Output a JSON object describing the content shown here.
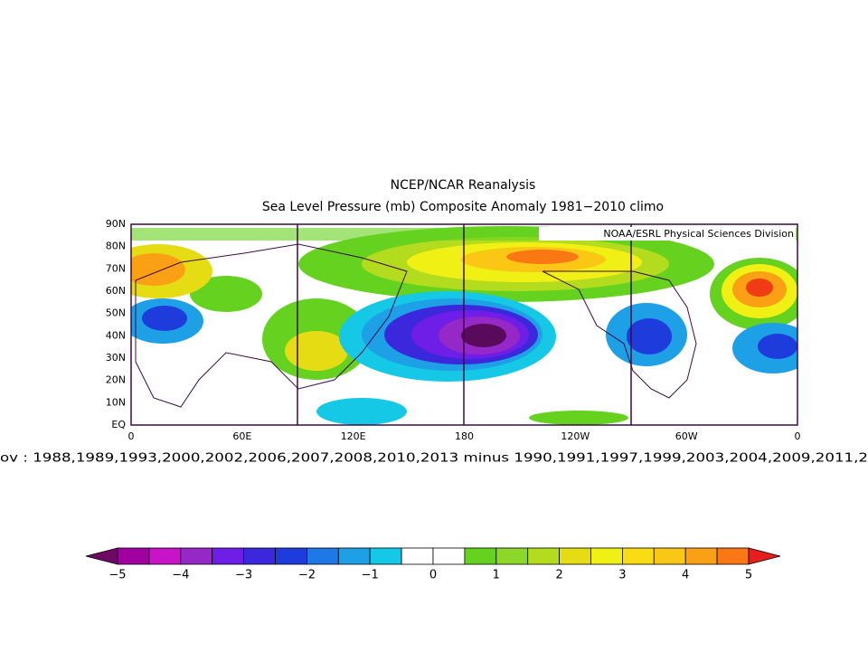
{
  "header": {
    "title": "NCEP/NCAR Reanalysis",
    "subtitle": "Sea Level Pressure (mb) Composite Anomaly 1981−2010 climo"
  },
  "map": {
    "attribution": "NOAA/ESRL Physical Sciences Division",
    "lat_labels": [
      "90N",
      "80N",
      "70N",
      "60N",
      "50N",
      "40N",
      "30N",
      "20N",
      "10N",
      "EQ"
    ],
    "lon_labels": [
      "0",
      "60E",
      "120E",
      "180",
      "120W",
      "60W",
      "0"
    ],
    "caption": "ov : 1988,1989,1993,2000,2002,2006,2007,2008,2010,2013 minus 1990,1991,1997,1999,2003,2004,2009,2011,2"
  },
  "colorbar": {
    "labels": [
      "−5",
      "−4",
      "−3",
      "−2",
      "−1",
      "0",
      "1",
      "2",
      "3",
      "4",
      "5"
    ],
    "under_color": "#6e0a64",
    "over_color": "#e61e1e",
    "colors": [
      "#82008c",
      "#a000a0",
      "#c814c8",
      "#9628c8",
      "#6e1ee6",
      "#3c28dc",
      "#1e3cdc",
      "#1e78e6",
      "#1ea0e6",
      "#14c8e6",
      "#ffffff",
      "#ffffff",
      "#64d21e",
      "#8cd728",
      "#b4dc1e",
      "#e6dc14",
      "#f0f014",
      "#fadc14",
      "#fac814",
      "#faa014",
      "#fa7814",
      "#f03c14"
    ]
  }
}
